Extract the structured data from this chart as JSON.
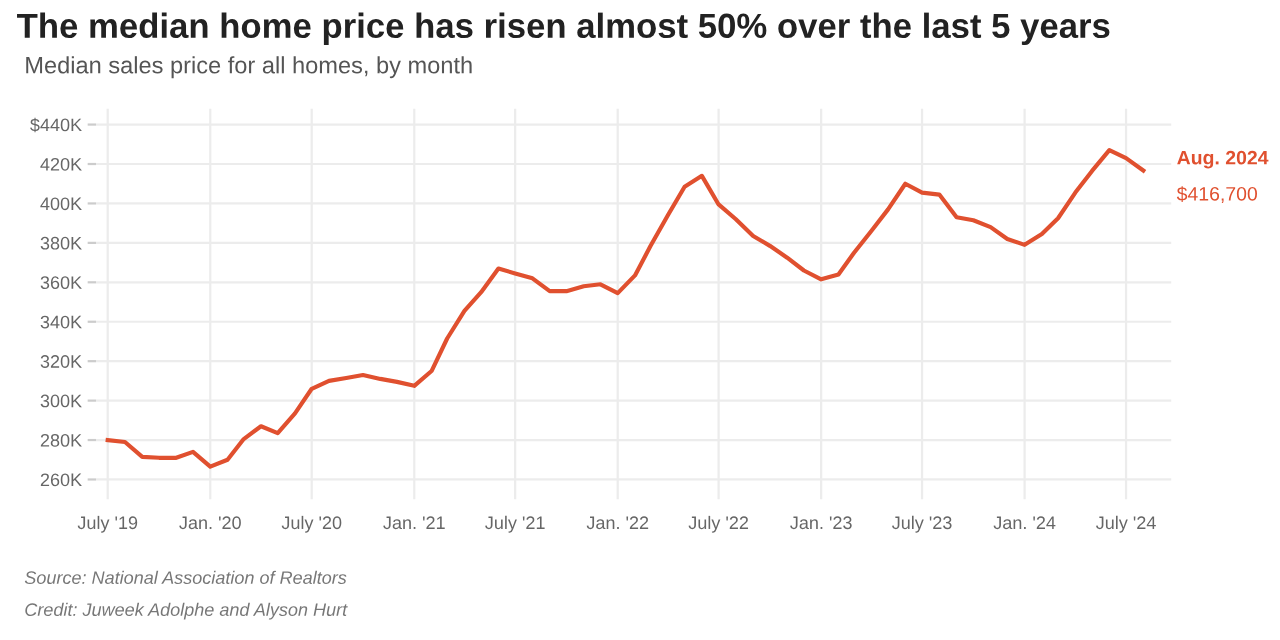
{
  "chart_data": {
    "type": "line",
    "title": "The median home price has risen almost 50% over the last 5 years",
    "subtitle": "Median sales price for all homes, by month",
    "x": [
      "2019-07",
      "2019-08",
      "2019-09",
      "2019-10",
      "2019-11",
      "2019-12",
      "2020-01",
      "2020-02",
      "2020-03",
      "2020-04",
      "2020-05",
      "2020-06",
      "2020-07",
      "2020-08",
      "2020-09",
      "2020-10",
      "2020-11",
      "2020-12",
      "2021-01",
      "2021-02",
      "2021-03",
      "2021-04",
      "2021-05",
      "2021-06",
      "2021-07",
      "2021-08",
      "2021-09",
      "2021-10",
      "2021-11",
      "2021-12",
      "2022-01",
      "2022-02",
      "2022-03",
      "2022-04",
      "2022-05",
      "2022-06",
      "2022-07",
      "2022-08",
      "2022-09",
      "2022-10",
      "2022-11",
      "2022-12",
      "2023-01",
      "2023-02",
      "2023-03",
      "2023-04",
      "2023-05",
      "2023-06",
      "2023-07",
      "2023-08",
      "2023-09",
      "2023-10",
      "2023-11",
      "2023-12",
      "2024-01",
      "2024-02",
      "2024-03",
      "2024-04",
      "2024-05",
      "2024-06",
      "2024-07",
      "2024-08"
    ],
    "series": [
      {
        "color": "#e0502f",
        "values": [
          280,
          279,
          271.5,
          271,
          271,
          274,
          266.5,
          270,
          280.5,
          287,
          283.5,
          293.5,
          306,
          310,
          311.5,
          313,
          311,
          309.5,
          307.5,
          315,
          331.5,
          345.5,
          355,
          367,
          364.5,
          362,
          355.5,
          355.5,
          358,
          359,
          354.5,
          363.5,
          378.5,
          394,
          408.5,
          414,
          399.5,
          392,
          383.5,
          378.5,
          372.5,
          366,
          361.5,
          364,
          375,
          386,
          397,
          410,
          405.5,
          404.5,
          393,
          391.5,
          388,
          382,
          379,
          384.5,
          392.5,
          405.5,
          416.5,
          427,
          423,
          416.7
        ]
      }
    ],
    "ylim": [
      250,
      448
    ],
    "yticks": [
      {
        "value": 260,
        "label": "260K"
      },
      {
        "value": 280,
        "label": "280K"
      },
      {
        "value": 300,
        "label": "300K"
      },
      {
        "value": 320,
        "label": "320K"
      },
      {
        "value": 340,
        "label": "340K"
      },
      {
        "value": 360,
        "label": "360K"
      },
      {
        "value": 380,
        "label": "380K"
      },
      {
        "value": 400,
        "label": "400K"
      },
      {
        "value": 420,
        "label": "420K"
      },
      {
        "value": 440,
        "label": "$440K"
      }
    ],
    "xlim": [
      "2019-06-10",
      "2024-09-20"
    ],
    "xticks": [
      {
        "value": "2019-07",
        "label": "July '19"
      },
      {
        "value": "2020-01",
        "label": "Jan. '20"
      },
      {
        "value": "2020-07",
        "label": "July '20"
      },
      {
        "value": "2021-01",
        "label": "Jan. '21"
      },
      {
        "value": "2021-07",
        "label": "July '21"
      },
      {
        "value": "2022-01",
        "label": "Jan. '22"
      },
      {
        "value": "2022-07",
        "label": "July '22"
      },
      {
        "value": "2023-01",
        "label": "Jan. '23"
      },
      {
        "value": "2023-07",
        "label": "July '23"
      },
      {
        "value": "2024-01",
        "label": "Jan. '24"
      },
      {
        "value": "2024-07",
        "label": "July '24"
      }
    ],
    "grid": true,
    "annotations": [
      {
        "text": "Aug. 2024",
        "x": "2024-08",
        "y": 416.7
      },
      {
        "text": "$416,700",
        "x": "2024-08",
        "y": 416.7
      },
      "Source: National Association of Realtors",
      "Credit: Juweek Adolphe and Alyson Hurt"
    ]
  }
}
